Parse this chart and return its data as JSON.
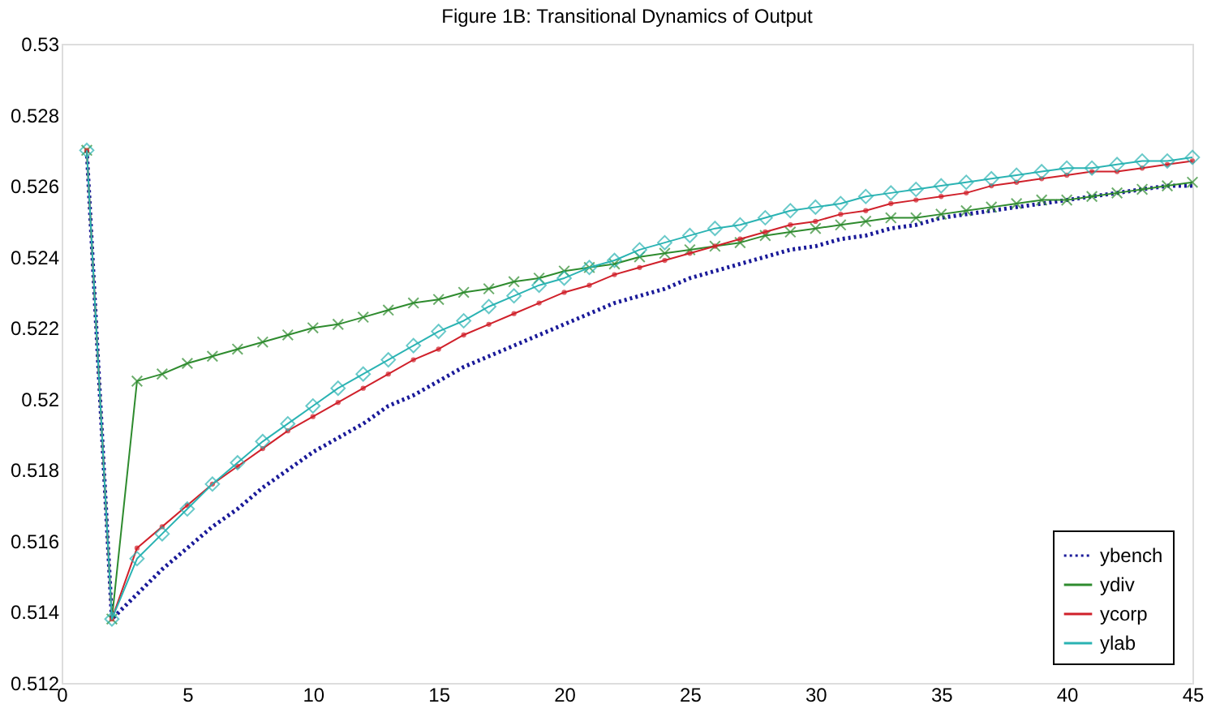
{
  "chart_data": {
    "type": "line",
    "title": "Figure 1B: Transitional Dynamics of Output",
    "x": [
      1,
      2,
      3,
      4,
      5,
      6,
      7,
      8,
      9,
      10,
      11,
      12,
      13,
      14,
      15,
      16,
      17,
      18,
      19,
      20,
      21,
      22,
      23,
      24,
      25,
      26,
      27,
      28,
      29,
      30,
      31,
      32,
      33,
      34,
      35,
      36,
      37,
      38,
      39,
      40,
      41,
      42,
      43,
      44,
      45
    ],
    "xlim": [
      0,
      45
    ],
    "xticks": [
      0,
      5,
      10,
      15,
      20,
      25,
      30,
      35,
      40,
      45
    ],
    "ylim": [
      0.512,
      0.53
    ],
    "yticks": [
      0.512,
      0.514,
      0.516,
      0.518,
      0.52,
      0.522,
      0.524,
      0.526,
      0.528,
      0.53
    ],
    "grid": false,
    "legend": "bottom right",
    "series": [
      {
        "name": "ybench",
        "color": "#1a1a99",
        "line_style": "dotted",
        "marker": "none",
        "values": [
          0.527,
          0.5138,
          0.5145,
          0.5152,
          0.5158,
          0.5164,
          0.5169,
          0.5175,
          0.518,
          0.5185,
          0.5189,
          0.5193,
          0.5198,
          0.5201,
          0.5205,
          0.5209,
          0.5212,
          0.5215,
          0.5218,
          0.5221,
          0.5224,
          0.5227,
          0.5229,
          0.5231,
          0.5234,
          0.5236,
          0.5238,
          0.524,
          0.5242,
          0.5243,
          0.5245,
          0.5246,
          0.5248,
          0.5249,
          0.5251,
          0.5252,
          0.5253,
          0.5254,
          0.5255,
          0.5256,
          0.5257,
          0.5258,
          0.5259,
          0.526,
          0.526
        ]
      },
      {
        "name": "ydiv",
        "color": "#2e8b2e",
        "line_style": "solid",
        "marker": "cross",
        "values": [
          0.527,
          0.5138,
          0.5205,
          0.5207,
          0.521,
          0.5212,
          0.5214,
          0.5216,
          0.5218,
          0.522,
          0.5221,
          0.5223,
          0.5225,
          0.5227,
          0.5228,
          0.523,
          0.5231,
          0.5233,
          0.5234,
          0.5236,
          0.5237,
          0.5238,
          0.524,
          0.5241,
          0.5242,
          0.5243,
          0.5244,
          0.5246,
          0.5247,
          0.5248,
          0.5249,
          0.525,
          0.5251,
          0.5251,
          0.5252,
          0.5253,
          0.5254,
          0.5255,
          0.5256,
          0.5256,
          0.5257,
          0.5258,
          0.5259,
          0.526,
          0.5261
        ]
      },
      {
        "name": "ycorp",
        "color": "#d0202a",
        "line_style": "solid",
        "marker": "circle",
        "values": [
          0.527,
          0.5138,
          0.5158,
          0.5164,
          0.517,
          0.5176,
          0.5181,
          0.5186,
          0.5191,
          0.5195,
          0.5199,
          0.5203,
          0.5207,
          0.5211,
          0.5214,
          0.5218,
          0.5221,
          0.5224,
          0.5227,
          0.523,
          0.5232,
          0.5235,
          0.5237,
          0.5239,
          0.5241,
          0.5243,
          0.5245,
          0.5247,
          0.5249,
          0.525,
          0.5252,
          0.5253,
          0.5255,
          0.5256,
          0.5257,
          0.5258,
          0.526,
          0.5261,
          0.5262,
          0.5263,
          0.5264,
          0.5264,
          0.5265,
          0.5266,
          0.5267
        ]
      },
      {
        "name": "ylab",
        "color": "#2ab3b3",
        "line_style": "solid",
        "marker": "diamond",
        "values": [
          0.527,
          0.5138,
          0.5155,
          0.5162,
          0.5169,
          0.5176,
          0.5182,
          0.5188,
          0.5193,
          0.5198,
          0.5203,
          0.5207,
          0.5211,
          0.5215,
          0.5219,
          0.5222,
          0.5226,
          0.5229,
          0.5232,
          0.5234,
          0.5237,
          0.5239,
          0.5242,
          0.5244,
          0.5246,
          0.5248,
          0.5249,
          0.5251,
          0.5253,
          0.5254,
          0.5255,
          0.5257,
          0.5258,
          0.5259,
          0.526,
          0.5261,
          0.5262,
          0.5263,
          0.5264,
          0.5265,
          0.5265,
          0.5266,
          0.5267,
          0.5267,
          0.5268
        ]
      }
    ]
  }
}
